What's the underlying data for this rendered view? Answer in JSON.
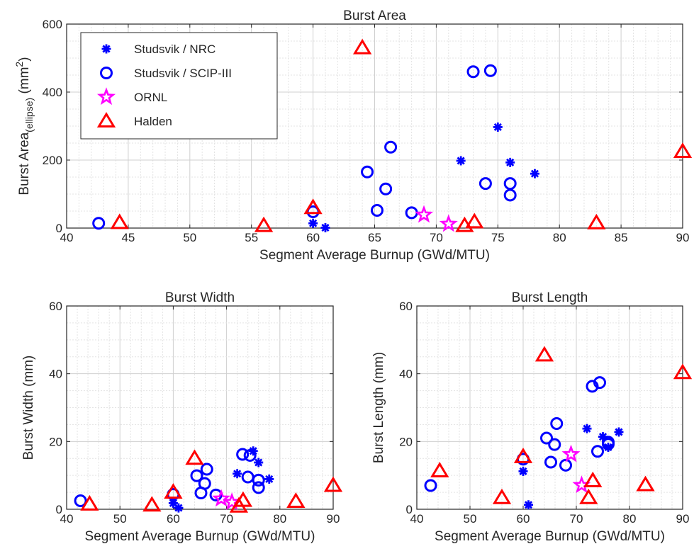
{
  "colors": {
    "studsvik_nrc": "#0000ff",
    "studsvik_scip": "#0000ff",
    "ornl": "#ff00ff",
    "halden": "#ff0000",
    "grid": "#dcdcdc",
    "axis": "#262626"
  },
  "chart_data": [
    {
      "id": "area",
      "type": "scatter",
      "title": "Burst Area",
      "xlabel": "Segment Average Burnup (GWd/MTU)",
      "ylabel": {
        "main": "Burst Area",
        "subscript": "(ellipse)",
        "unit_open": " (mm",
        "unit_sup": "2",
        "unit_close": ")"
      },
      "xlim": [
        40,
        90
      ],
      "ylim": [
        0,
        600
      ],
      "xticks": [
        "40",
        "45",
        "50",
        "55",
        "60",
        "65",
        "70",
        "75",
        "80",
        "85",
        "90"
      ],
      "yticks": [
        "0",
        "200",
        "400",
        "600"
      ],
      "grid": "on (major and minor)",
      "legend": {
        "placement": "top-left",
        "entries": [
          "Studsvik / NRC",
          "Studsvik / SCIP-III",
          "ORNL",
          "Halden"
        ]
      },
      "series": [
        {
          "name": "Studsvik / NRC",
          "marker": "asterisk",
          "points": [
            [
              60.0,
              14
            ],
            [
              61.0,
              1
            ],
            [
              72.0,
              198
            ],
            [
              75.0,
              297
            ],
            [
              76.0,
              193
            ],
            [
              78.0,
              160
            ]
          ]
        },
        {
          "name": "Studsvik / SCIP-III",
          "marker": "circle",
          "points": [
            [
              42.6,
              14
            ],
            [
              60.0,
              48
            ],
            [
              64.4,
              165
            ],
            [
              65.2,
              52
            ],
            [
              65.9,
              115
            ],
            [
              66.3,
              238
            ],
            [
              68.0,
              45
            ],
            [
              73.0,
              460
            ],
            [
              74.0,
              131
            ],
            [
              74.4,
              463
            ],
            [
              76.0,
              97
            ],
            [
              76.0,
              131
            ]
          ]
        },
        {
          "name": "ORNL",
          "marker": "star",
          "points": [
            [
              69.0,
              39
            ],
            [
              71.0,
              12
            ]
          ]
        },
        {
          "name": "Halden",
          "marker": "triangle",
          "points": [
            [
              44.3,
              16
            ],
            [
              56.0,
              7
            ],
            [
              60.0,
              60
            ],
            [
              64.0,
              530
            ],
            [
              72.3,
              7
            ],
            [
              73.1,
              18
            ],
            [
              83.0,
              15
            ],
            [
              90.0,
              225
            ]
          ]
        }
      ]
    },
    {
      "id": "width",
      "type": "scatter",
      "title": "Burst Width",
      "xlabel": "Segment Average Burnup (GWd/MTU)",
      "ylabel": "Burst Width (mm)",
      "xlim": [
        40,
        90
      ],
      "ylim": [
        0,
        60
      ],
      "xticks": [
        "40",
        "50",
        "60",
        "70",
        "80",
        "90"
      ],
      "yticks": [
        "0",
        "20",
        "40",
        "60"
      ],
      "grid": "on (major and minor)",
      "series": [
        {
          "name": "Studsvik / NRC",
          "marker": "asterisk",
          "points": [
            [
              60.0,
              1.8
            ],
            [
              61.0,
              0.4
            ],
            [
              72.0,
              10.5
            ],
            [
              75.0,
              17.2
            ],
            [
              76.0,
              13.8
            ],
            [
              78.0,
              8.9
            ]
          ]
        },
        {
          "name": "Studsvik / SCIP-III",
          "marker": "circle",
          "points": [
            [
              42.6,
              2.5
            ],
            [
              60.0,
              4.4
            ],
            [
              64.4,
              9.9
            ],
            [
              65.2,
              4.8
            ],
            [
              65.9,
              7.6
            ],
            [
              66.3,
              11.8
            ],
            [
              68.0,
              4.2
            ],
            [
              73.0,
              16.2
            ],
            [
              74.0,
              9.5
            ],
            [
              74.4,
              15.9
            ],
            [
              76.0,
              6.4
            ],
            [
              76.0,
              8.6
            ]
          ]
        },
        {
          "name": "ORNL",
          "marker": "star",
          "points": [
            [
              69.0,
              3.1
            ],
            [
              71.0,
              2.1
            ]
          ]
        },
        {
          "name": "Halden",
          "marker": "triangle",
          "points": [
            [
              44.3,
              1.5
            ],
            [
              56.0,
              1.2
            ],
            [
              60.0,
              5.0
            ],
            [
              64.0,
              15.0
            ],
            [
              72.3,
              0.9
            ],
            [
              73.1,
              2.6
            ],
            [
              83.0,
              2.3
            ],
            [
              90.0,
              7.0
            ]
          ]
        }
      ]
    },
    {
      "id": "length",
      "type": "scatter",
      "title": "Burst Length",
      "xlabel": "Segment Average Burnup (GWd/MTU)",
      "ylabel": "Burst Length (mm)",
      "xlim": [
        40,
        90
      ],
      "ylim": [
        0,
        60
      ],
      "xticks": [
        "40",
        "50",
        "60",
        "70",
        "80",
        "90"
      ],
      "yticks": [
        "0",
        "20",
        "40",
        "60"
      ],
      "grid": "on (major and minor)",
      "series": [
        {
          "name": "Studsvik / NRC",
          "marker": "asterisk",
          "points": [
            [
              60.0,
              11.2
            ],
            [
              61.0,
              1.3
            ],
            [
              72.0,
              23.8
            ],
            [
              75.0,
              21.4
            ],
            [
              76.0,
              18.3
            ],
            [
              78.0,
              22.8
            ]
          ]
        },
        {
          "name": "Studsvik / SCIP-III",
          "marker": "circle",
          "points": [
            [
              42.6,
              7.0
            ],
            [
              60.0,
              14.8
            ],
            [
              64.4,
              21.0
            ],
            [
              65.2,
              13.9
            ],
            [
              65.9,
              19.1
            ],
            [
              66.3,
              25.3
            ],
            [
              68.0,
              13.0
            ],
            [
              73.0,
              36.3
            ],
            [
              74.0,
              17.1
            ],
            [
              74.4,
              37.4
            ],
            [
              76.0,
              19.2
            ],
            [
              76.0,
              19.8
            ]
          ]
        },
        {
          "name": "ORNL",
          "marker": "star",
          "points": [
            [
              69.0,
              16.2
            ],
            [
              71.0,
              7.1
            ]
          ]
        },
        {
          "name": "Halden",
          "marker": "triangle",
          "points": [
            [
              44.3,
              11.3
            ],
            [
              56.0,
              3.4
            ],
            [
              60.0,
              15.5
            ],
            [
              64.0,
              45.5
            ],
            [
              72.3,
              3.4
            ],
            [
              73.1,
              8.4
            ],
            [
              83.0,
              7.2
            ],
            [
              90.0,
              40.3
            ]
          ]
        }
      ]
    }
  ]
}
